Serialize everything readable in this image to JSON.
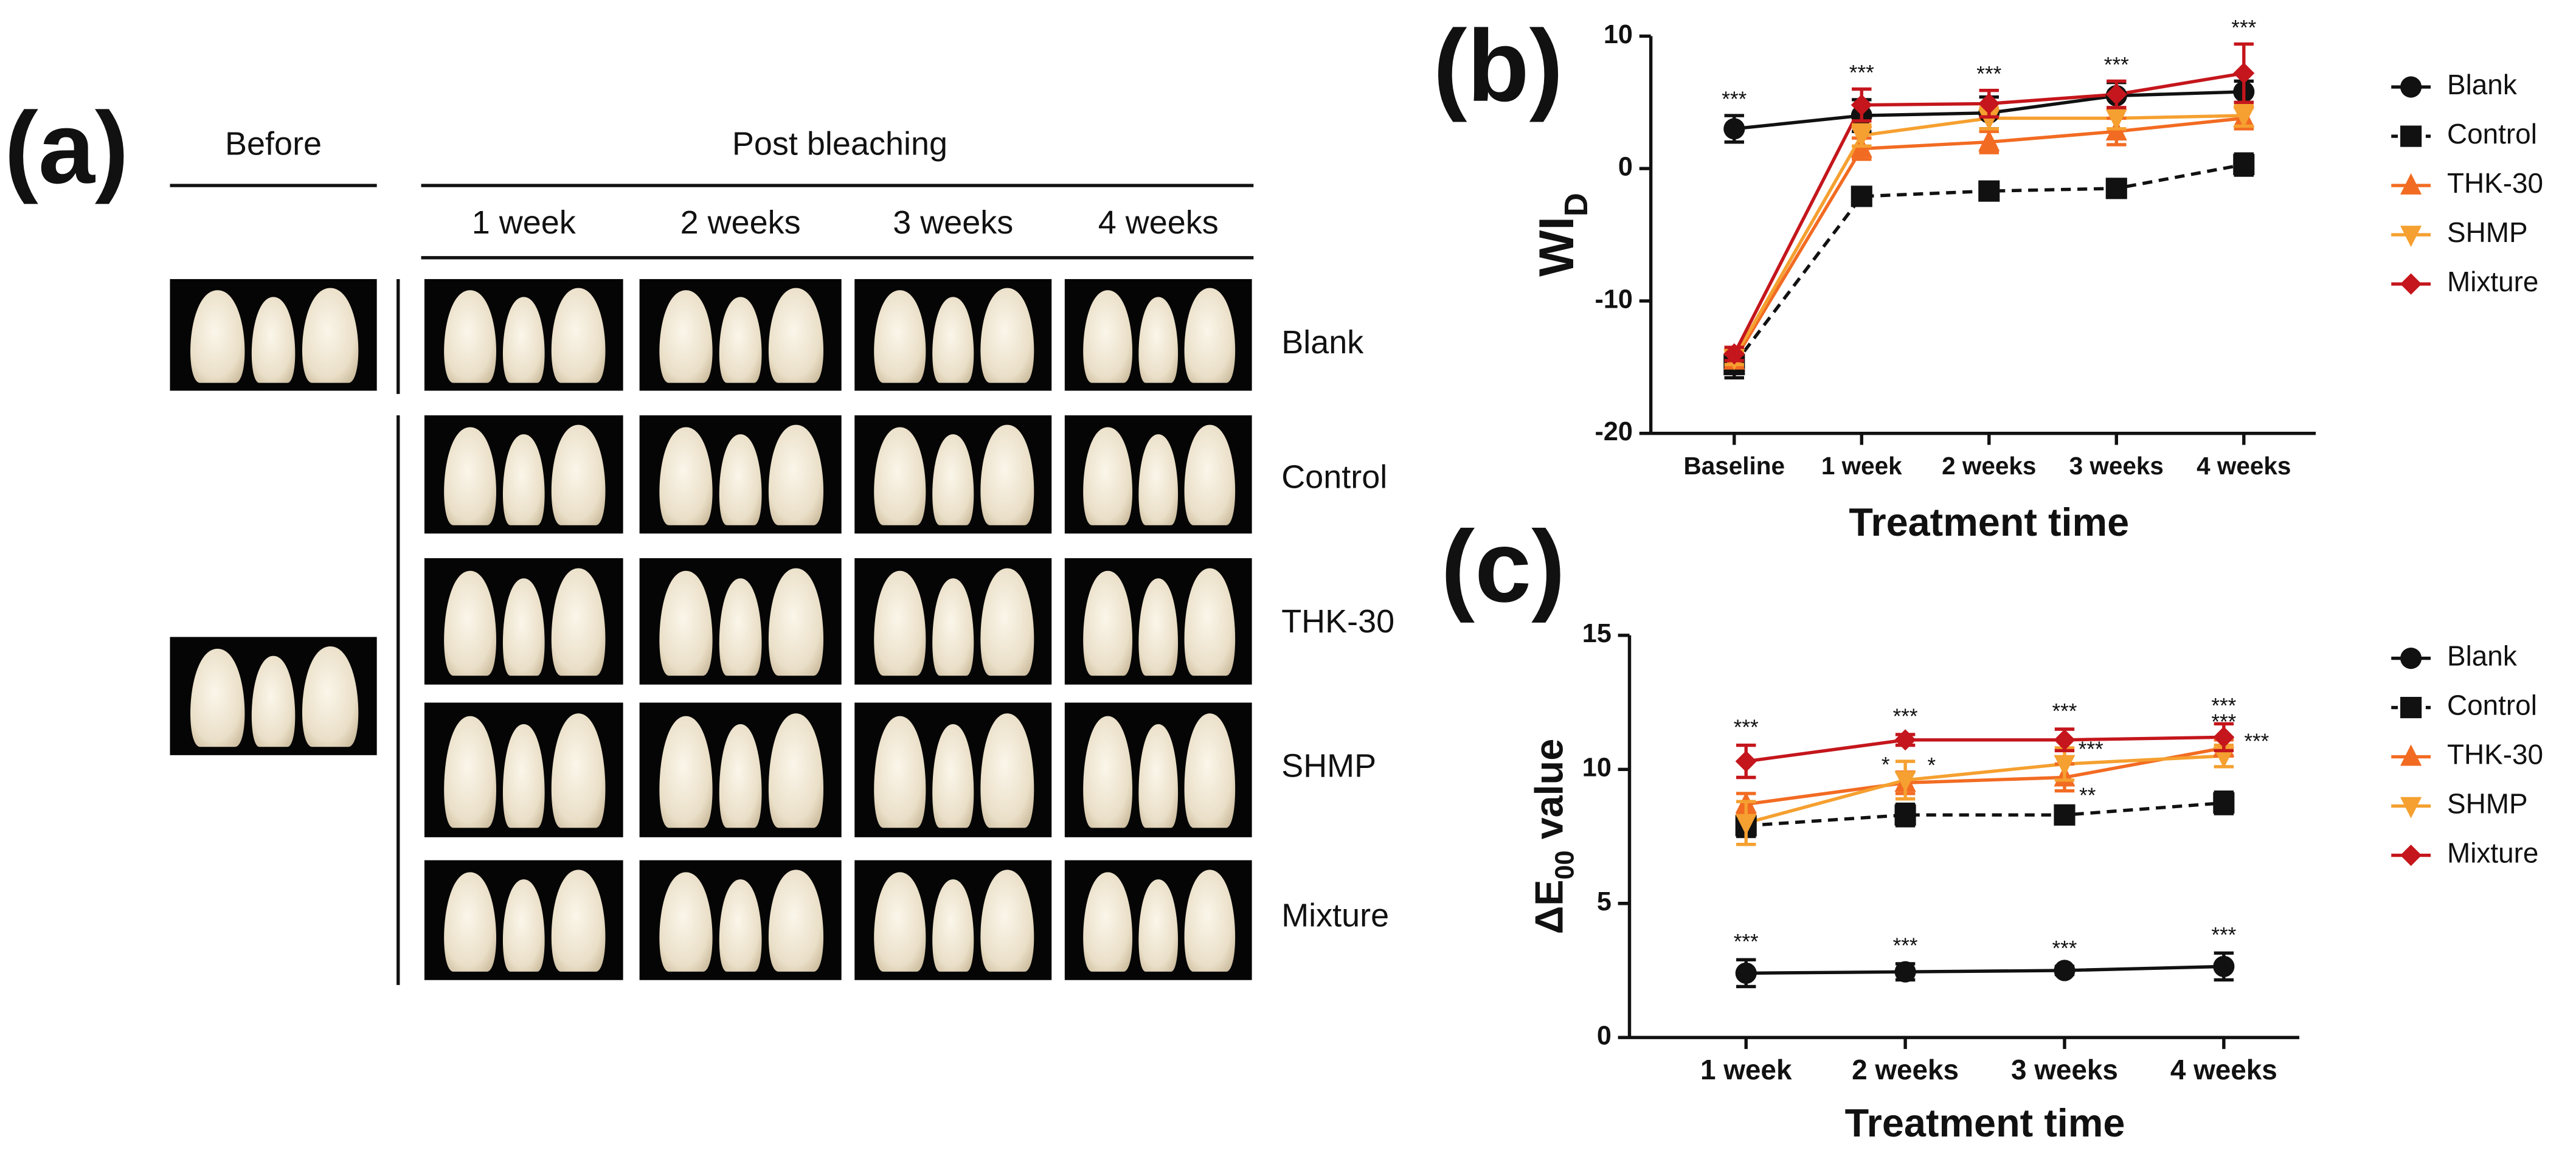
{
  "panel_labels": [
    "(a)",
    "(b)",
    "(c)"
  ],
  "photo_panel": {
    "before_header": "Before",
    "post_header": "Post bleaching",
    "columns": [
      "1 week",
      "2 weeks",
      "3 weeks",
      "4 weeks"
    ],
    "rows": [
      "Blank",
      "Control",
      "THK-30",
      "SHMP",
      "Mixture"
    ]
  },
  "chart_data": [
    {
      "type": "line",
      "categories": [
        "Baseline",
        "1 week",
        "2 weeks",
        "3 weeks",
        "4 weeks"
      ],
      "x_label": "Treatment time",
      "y_label": {
        "text": "WI",
        "sub": "D"
      },
      "ylim": [
        -20,
        10
      ],
      "yticks": [
        -20,
        -10,
        0,
        10
      ],
      "grid": false,
      "legend": "right",
      "significance": [
        "***",
        "***",
        "***",
        "***",
        "***"
      ],
      "series": [
        {
          "name": "Blank",
          "color": "#111111",
          "marker": "circle",
          "dash": false,
          "values": [
            3.0,
            4.0,
            4.2,
            5.5,
            5.8
          ],
          "errors": [
            1.0,
            1.2,
            1.2,
            1.0,
            0.8
          ]
        },
        {
          "name": "Control",
          "color": "#111111",
          "marker": "square",
          "dash": true,
          "values": [
            -14.8,
            -2.1,
            -1.7,
            -1.5,
            0.3
          ],
          "errors": [
            1.0,
            0.4,
            0.4,
            0.5,
            0.8
          ]
        },
        {
          "name": "THK-30",
          "color": "#f26b22",
          "marker": "triangle-up",
          "dash": false,
          "values": [
            -14.5,
            1.5,
            2.0,
            2.8,
            3.8
          ],
          "errors": [
            0.5,
            0.8,
            0.8,
            1.0,
            0.8
          ]
        },
        {
          "name": "SHMP",
          "color": "#f5a030",
          "marker": "triangle-down",
          "dash": false,
          "values": [
            -14.3,
            2.5,
            3.8,
            3.8,
            4.0
          ],
          "errors": [
            0.5,
            0.8,
            0.8,
            0.8,
            0.8
          ]
        },
        {
          "name": "Mixture",
          "color": "#c4161c",
          "marker": "diamond",
          "dash": false,
          "values": [
            -14.0,
            4.8,
            4.9,
            5.6,
            7.2
          ],
          "errors": [
            0.5,
            1.2,
            1.0,
            1.0,
            2.2
          ]
        }
      ]
    },
    {
      "type": "line",
      "categories": [
        "1 week",
        "2 weeks",
        "3 weeks",
        "4 weeks"
      ],
      "x_label": "Treatment time",
      "y_label": {
        "text": "ΔE",
        "sub": "00",
        "tail": " value"
      },
      "ylim": [
        0,
        15
      ],
      "yticks": [
        0,
        5,
        10,
        15
      ],
      "grid": false,
      "legend": "right",
      "series": [
        {
          "name": "Blank",
          "color": "#111111",
          "marker": "circle",
          "dash": false,
          "values": [
            2.4,
            2.45,
            2.5,
            2.65
          ],
          "errors": [
            0.5,
            0.3,
            0.15,
            0.5
          ],
          "labels": [
            "***",
            "***",
            "***",
            "***"
          ]
        },
        {
          "name": "Control",
          "color": "#111111",
          "marker": "square",
          "dash": true,
          "values": [
            7.9,
            8.3,
            8.3,
            8.75
          ],
          "errors": [
            0.4,
            0.4,
            0.3,
            0.4
          ]
        },
        {
          "name": "THK-30",
          "color": "#f26b22",
          "marker": "triangle-up",
          "dash": false,
          "values": [
            8.7,
            9.5,
            9.7,
            10.8
          ],
          "errors": [
            0.4,
            0.4,
            0.5,
            0.3
          ],
          "labels": [
            null,
            "*",
            "**",
            "***"
          ]
        },
        {
          "name": "SHMP",
          "color": "#f5a030",
          "marker": "triangle-down",
          "dash": false,
          "values": [
            8.0,
            9.6,
            10.2,
            10.5
          ],
          "errors": [
            0.8,
            0.7,
            0.6,
            0.4
          ],
          "labels": [
            null,
            "*",
            "***",
            "***"
          ]
        },
        {
          "name": "Mixture",
          "color": "#c4161c",
          "marker": "diamond",
          "dash": false,
          "values": [
            10.3,
            11.1,
            11.1,
            11.2
          ],
          "errors": [
            0.6,
            0.2,
            0.4,
            0.5
          ],
          "labels": [
            "***",
            "***",
            "***",
            "***"
          ]
        }
      ]
    }
  ]
}
